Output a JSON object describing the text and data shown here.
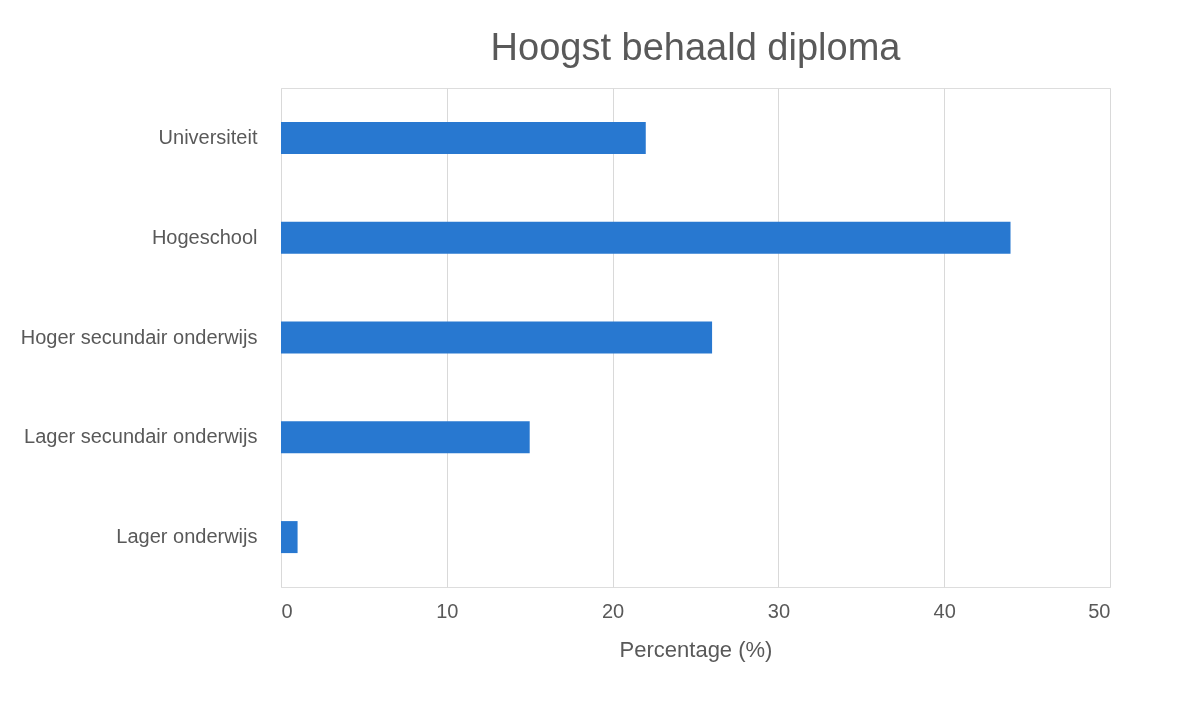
{
  "chart_data": {
    "type": "bar",
    "orientation": "horizontal",
    "title": "Hoogst behaald diploma",
    "xlabel": "Percentage (%)",
    "categories": [
      "Universiteit",
      "Hogeschool",
      "Hoger secundair onderwijs",
      "Lager secundair onderwijs",
      "Lager onderwijs"
    ],
    "values": [
      22,
      44,
      26,
      15,
      1
    ],
    "color": "#2878d0",
    "xlim": [
      0,
      50
    ],
    "xticks": [
      0,
      10,
      20,
      30,
      40,
      50
    ],
    "grid": "x"
  }
}
